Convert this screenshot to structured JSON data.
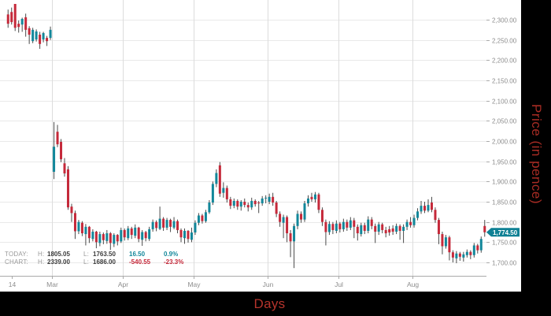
{
  "chart_data": {
    "type": "candlestick",
    "title": "",
    "xlabel": "Days",
    "ylabel": "Price (in pence)",
    "grid": true,
    "y_axis": {
      "side": "right",
      "range": [
        1680,
        2345
      ],
      "ticks": [
        {
          "value": 2300,
          "label": "2,300.00"
        },
        {
          "value": 2250,
          "label": "2,250.00"
        },
        {
          "value": 2200,
          "label": "2,200.00"
        },
        {
          "value": 2150,
          "label": "2,150.00"
        },
        {
          "value": 2100,
          "label": "2,100.00"
        },
        {
          "value": 2050,
          "label": "2,050.00"
        },
        {
          "value": 2000,
          "label": "2,000.00"
        },
        {
          "value": 1950,
          "label": "1,950.00"
        },
        {
          "value": 1900,
          "label": "1,900.00"
        },
        {
          "value": 1850,
          "label": "1,850.00"
        },
        {
          "value": 1800,
          "label": "1,800.00"
        },
        {
          "value": 1750,
          "label": "1,750.00"
        },
        {
          "value": 1700,
          "label": "1,700.00"
        }
      ]
    },
    "x_axis": {
      "ticks": [
        {
          "label": "14",
          "idx": 1.5,
          "gridline": false
        },
        {
          "label": "Mar",
          "idx": 13,
          "gridline": true
        },
        {
          "label": "Apr",
          "idx": 33,
          "gridline": true
        },
        {
          "label": "May",
          "idx": 53,
          "gridline": true
        },
        {
          "label": "Jun",
          "idx": 74,
          "gridline": true
        },
        {
          "label": "Jul",
          "idx": 94,
          "gridline": true
        },
        {
          "label": "Aug",
          "idx": 115,
          "gridline": true
        }
      ]
    },
    "current_price": {
      "value": 1774.5,
      "label": "1,774.50"
    },
    "candles_format": [
      "open",
      "high",
      "low",
      "close"
    ],
    "candles": [
      [
        2313,
        2325,
        2280,
        2290
      ],
      [
        2319,
        2330,
        2288,
        2294
      ],
      [
        2339,
        2339,
        2272,
        2280
      ],
      [
        2290,
        2298,
        2268,
        2282
      ],
      [
        2288,
        2305,
        2270,
        2302
      ],
      [
        2306,
        2315,
        2258,
        2275
      ],
      [
        2279,
        2284,
        2240,
        2263
      ],
      [
        2247,
        2280,
        2242,
        2275
      ],
      [
        2251,
        2276,
        2246,
        2271
      ],
      [
        2263,
        2270,
        2228,
        2240
      ],
      [
        2251,
        2270,
        2244,
        2267
      ],
      [
        2255,
        2260,
        2235,
        2247
      ],
      [
        2255,
        2283,
        2250,
        2275
      ],
      [
        1924,
        2047,
        1906,
        1986
      ],
      [
        2023,
        2040,
        1985,
        1992
      ],
      [
        1998,
        2005,
        1948,
        1955
      ],
      [
        1945,
        1958,
        1912,
        1920
      ],
      [
        1930,
        1938,
        1830,
        1836
      ],
      [
        1838,
        1845,
        1800,
        1822
      ],
      [
        1822,
        1828,
        1758,
        1777
      ],
      [
        1777,
        1805,
        1770,
        1800
      ],
      [
        1798,
        1802,
        1765,
        1772
      ],
      [
        1770,
        1795,
        1742,
        1788
      ],
      [
        1788,
        1790,
        1748,
        1760
      ],
      [
        1758,
        1782,
        1752,
        1776
      ],
      [
        1776,
        1778,
        1735,
        1750
      ],
      [
        1748,
        1776,
        1740,
        1770
      ],
      [
        1770,
        1774,
        1745,
        1755
      ],
      [
        1753,
        1780,
        1746,
        1772
      ],
      [
        1772,
        1775,
        1731,
        1748
      ],
      [
        1746,
        1772,
        1738,
        1768
      ],
      [
        1768,
        1770,
        1742,
        1752
      ],
      [
        1752,
        1786,
        1748,
        1780
      ],
      [
        1780,
        1784,
        1754,
        1762
      ],
      [
        1760,
        1790,
        1755,
        1784
      ],
      [
        1784,
        1788,
        1758,
        1768
      ],
      [
        1766,
        1794,
        1760,
        1786
      ],
      [
        1786,
        1788,
        1750,
        1758
      ],
      [
        1756,
        1780,
        1741,
        1775
      ],
      [
        1775,
        1778,
        1752,
        1760
      ],
      [
        1758,
        1788,
        1753,
        1782
      ],
      [
        1782,
        1806,
        1776,
        1800
      ],
      [
        1800,
        1804,
        1777,
        1785
      ],
      [
        1783,
        1838,
        1780,
        1808
      ],
      [
        1808,
        1812,
        1778,
        1786
      ],
      [
        1786,
        1810,
        1780,
        1805
      ],
      [
        1805,
        1808,
        1775,
        1788
      ],
      [
        1786,
        1812,
        1782,
        1802
      ],
      [
        1802,
        1806,
        1772,
        1780
      ],
      [
        1780,
        1784,
        1750,
        1762
      ],
      [
        1760,
        1784,
        1746,
        1778
      ],
      [
        1778,
        1780,
        1749,
        1758
      ],
      [
        1756,
        1786,
        1750,
        1774
      ],
      [
        1774,
        1804,
        1768,
        1798
      ],
      [
        1798,
        1822,
        1792,
        1816
      ],
      [
        1816,
        1820,
        1796,
        1802
      ],
      [
        1802,
        1830,
        1798,
        1824
      ],
      [
        1824,
        1854,
        1820,
        1848
      ],
      [
        1848,
        1900,
        1842,
        1894
      ],
      [
        1894,
        1930,
        1886,
        1921
      ],
      [
        1940,
        1948,
        1862,
        1870
      ],
      [
        1872,
        1898,
        1860,
        1884
      ],
      [
        1884,
        1890,
        1848,
        1856
      ],
      [
        1856,
        1862,
        1832,
        1840
      ],
      [
        1840,
        1858,
        1834,
        1852
      ],
      [
        1852,
        1856,
        1830,
        1838
      ],
      [
        1838,
        1854,
        1828,
        1850
      ],
      [
        1850,
        1858,
        1836,
        1842
      ],
      [
        1842,
        1848,
        1826,
        1836
      ],
      [
        1836,
        1860,
        1830,
        1852
      ],
      [
        1852,
        1856,
        1838,
        1844
      ],
      [
        1848,
        1852,
        1822,
        1846
      ],
      [
        1846,
        1864,
        1840,
        1858
      ],
      [
        1858,
        1866,
        1846,
        1860
      ],
      [
        1850,
        1870,
        1844,
        1862
      ],
      [
        1862,
        1872,
        1840,
        1848
      ],
      [
        1848,
        1852,
        1812,
        1820
      ],
      [
        1820,
        1826,
        1788,
        1800
      ],
      [
        1798,
        1818,
        1760,
        1812
      ],
      [
        1812,
        1816,
        1750,
        1772
      ],
      [
        1772,
        1780,
        1713,
        1752
      ],
      [
        1752,
        1796,
        1686,
        1790
      ],
      [
        1790,
        1828,
        1782,
        1820
      ],
      [
        1820,
        1826,
        1798,
        1806
      ],
      [
        1806,
        1852,
        1800,
        1846
      ],
      [
        1846,
        1866,
        1838,
        1858
      ],
      [
        1862,
        1872,
        1850,
        1856
      ],
      [
        1856,
        1874,
        1848,
        1868
      ],
      [
        1868,
        1872,
        1822,
        1830
      ],
      [
        1830,
        1836,
        1790,
        1800
      ],
      [
        1800,
        1806,
        1742,
        1775
      ],
      [
        1775,
        1802,
        1768,
        1795
      ],
      [
        1795,
        1800,
        1770,
        1780
      ],
      [
        1778,
        1804,
        1772,
        1796
      ],
      [
        1796,
        1800,
        1774,
        1782
      ],
      [
        1782,
        1808,
        1776,
        1800
      ],
      [
        1800,
        1806,
        1778,
        1786
      ],
      [
        1786,
        1812,
        1780,
        1804
      ],
      [
        1804,
        1810,
        1760,
        1788
      ],
      [
        1788,
        1794,
        1754,
        1772
      ],
      [
        1770,
        1798,
        1764,
        1792
      ],
      [
        1792,
        1798,
        1770,
        1778
      ],
      [
        1778,
        1814,
        1772,
        1806
      ],
      [
        1806,
        1812,
        1782,
        1790
      ],
      [
        1790,
        1796,
        1748,
        1776
      ],
      [
        1776,
        1800,
        1768,
        1794
      ],
      [
        1794,
        1798,
        1772,
        1780
      ],
      [
        1780,
        1788,
        1762,
        1772
      ],
      [
        1782,
        1790,
        1766,
        1774
      ],
      [
        1784,
        1792,
        1768,
        1776
      ],
      [
        1776,
        1796,
        1770,
        1790
      ],
      [
        1790,
        1794,
        1756,
        1778
      ],
      [
        1778,
        1794,
        1748,
        1788
      ],
      [
        1788,
        1806,
        1780,
        1800
      ],
      [
        1800,
        1812,
        1786,
        1792
      ],
      [
        1792,
        1818,
        1786,
        1810
      ],
      [
        1810,
        1834,
        1804,
        1826
      ],
      [
        1826,
        1852,
        1820,
        1840
      ],
      [
        1840,
        1850,
        1822,
        1828
      ],
      [
        1828,
        1856,
        1824,
        1842
      ],
      [
        1848,
        1862,
        1824,
        1830
      ],
      [
        1830,
        1836,
        1798,
        1805
      ],
      [
        1805,
        1810,
        1745,
        1770
      ],
      [
        1770,
        1776,
        1720,
        1740
      ],
      [
        1740,
        1768,
        1734,
        1762
      ],
      [
        1762,
        1766,
        1705,
        1725
      ],
      [
        1725,
        1730,
        1700,
        1712
      ],
      [
        1710,
        1728,
        1698,
        1722
      ],
      [
        1722,
        1726,
        1704,
        1714
      ],
      [
        1712,
        1726,
        1702,
        1720
      ],
      [
        1718,
        1732,
        1712,
        1726
      ],
      [
        1726,
        1730,
        1708,
        1718
      ],
      [
        1718,
        1748,
        1712,
        1742
      ],
      [
        1742,
        1746,
        1722,
        1730
      ],
      [
        1730,
        1764,
        1724,
        1758
      ],
      [
        1790,
        1805.05,
        1763.5,
        1774.5
      ]
    ]
  },
  "legend": {
    "today_label": "TODAY:",
    "chart_label": "CHART:",
    "h_label_today": "H: 1805.05",
    "l_label_today": "L: 1763.50",
    "today_change": "16.50",
    "today_change_pct": "0.9%",
    "h_label_chart": "H: 2339.00",
    "l_label_chart": "L: 1686.00",
    "chart_change": "-540.55",
    "chart_change_pct": "-23.3%",
    "h_prefix": "H:",
    "l_prefix": "L:",
    "today_high": "1805.05",
    "today_low": "1763.50",
    "chart_high": "2339.00",
    "chart_low": "1686.00"
  },
  "axis_titles": {
    "x": "Days",
    "y": "Price (in pence)"
  },
  "colors": {
    "up": "#12879a",
    "down": "#c5293a",
    "wick": "#4a4a4a",
    "tag_bg": "#0e8094",
    "tag_text": "#ffffff",
    "grid_h": "#e9e9e9",
    "grid_v": "#dcdcdc",
    "axis_line": "#aaaaaa",
    "tick_text": "#8c8c8c",
    "x_title_red": "#b5342c",
    "y_title_red": "#a82c24",
    "frame_black": "#000000",
    "chart_bg": "#ffffff"
  }
}
